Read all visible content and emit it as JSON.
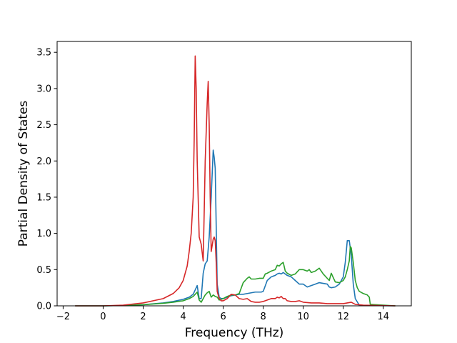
{
  "chart_data": {
    "type": "line",
    "title": "",
    "xlabel": "Frequency (THz)",
    "ylabel": "Partial Density of States",
    "xlim": [
      -2.3,
      15.4
    ],
    "ylim": [
      0,
      3.65
    ],
    "xticks": [
      -2,
      0,
      2,
      4,
      6,
      8,
      10,
      12,
      14
    ],
    "xtick_labels": [
      "−2",
      "0",
      "2",
      "4",
      "6",
      "8",
      "10",
      "12",
      "14"
    ],
    "yticks": [
      0,
      0.5,
      1.0,
      1.5,
      2.0,
      2.5,
      3.0,
      3.5
    ],
    "ytick_labels": [
      "0.0",
      "0.5",
      "1.0",
      "1.5",
      "2.0",
      "2.5",
      "3.0",
      "3.5"
    ],
    "grid": false,
    "legend": false,
    "series": [
      {
        "color": "#1f77b4",
        "x": [
          -1.4,
          0,
          1,
          2,
          3,
          3.5,
          4,
          4.3,
          4.5,
          4.6,
          4.7,
          4.8,
          4.9,
          5.0,
          5.1,
          5.2,
          5.3,
          5.4,
          5.5,
          5.55,
          5.6,
          5.65,
          5.7,
          5.8,
          5.9,
          6.0,
          6.2,
          6.4,
          6.6,
          6.8,
          7.0,
          7.2,
          7.4,
          7.6,
          7.8,
          7.9,
          8.0,
          8.2,
          8.4,
          8.6,
          8.7,
          8.8,
          8.9,
          9.0,
          9.2,
          9.4,
          9.6,
          9.8,
          10.0,
          10.2,
          10.4,
          10.6,
          10.8,
          11.0,
          11.2,
          11.3,
          11.4,
          11.6,
          11.8,
          12.0,
          12.1,
          12.2,
          12.3,
          12.4,
          12.5,
          12.6,
          12.8,
          13.0,
          14.6
        ],
        "y": [
          0,
          0,
          0.005,
          0.015,
          0.04,
          0.06,
          0.09,
          0.12,
          0.16,
          0.22,
          0.28,
          0.1,
          0.1,
          0.45,
          0.58,
          0.62,
          0.95,
          1.5,
          2.15,
          2.05,
          1.9,
          1.1,
          0.3,
          0.12,
          0.1,
          0.1,
          0.12,
          0.14,
          0.15,
          0.16,
          0.16,
          0.17,
          0.18,
          0.19,
          0.19,
          0.19,
          0.2,
          0.35,
          0.4,
          0.42,
          0.44,
          0.45,
          0.44,
          0.46,
          0.42,
          0.4,
          0.35,
          0.3,
          0.3,
          0.26,
          0.28,
          0.3,
          0.32,
          0.31,
          0.3,
          0.26,
          0.25,
          0.26,
          0.3,
          0.4,
          0.6,
          0.9,
          0.9,
          0.7,
          0.3,
          0.1,
          0.01,
          0.005,
          0
        ]
      },
      {
        "color": "#2ca02c",
        "x": [
          -1.4,
          0,
          1,
          2,
          3,
          3.5,
          4,
          4.3,
          4.5,
          4.6,
          4.7,
          4.8,
          4.9,
          5.0,
          5.1,
          5.2,
          5.3,
          5.4,
          5.5,
          5.6,
          5.7,
          5.8,
          5.9,
          6.0,
          6.2,
          6.4,
          6.6,
          6.8,
          7.0,
          7.2,
          7.3,
          7.4,
          7.6,
          7.8,
          8.0,
          8.1,
          8.2,
          8.4,
          8.6,
          8.7,
          8.8,
          8.9,
          9.0,
          9.1,
          9.2,
          9.4,
          9.6,
          9.8,
          10.0,
          10.2,
          10.3,
          10.4,
          10.6,
          10.8,
          11.0,
          11.2,
          11.3,
          11.4,
          11.6,
          11.8,
          12.0,
          12.1,
          12.2,
          12.3,
          12.35,
          12.4,
          12.5,
          12.6,
          12.7,
          12.8,
          13.0,
          13.2,
          13.3,
          13.35,
          14.6
        ],
        "y": [
          0,
          0,
          0.005,
          0.015,
          0.035,
          0.05,
          0.07,
          0.1,
          0.13,
          0.16,
          0.19,
          0.08,
          0.05,
          0.1,
          0.15,
          0.18,
          0.2,
          0.12,
          0.15,
          0.13,
          0.12,
          0.08,
          0.09,
          0.1,
          0.13,
          0.15,
          0.15,
          0.17,
          0.32,
          0.38,
          0.4,
          0.37,
          0.37,
          0.38,
          0.38,
          0.44,
          0.45,
          0.48,
          0.5,
          0.56,
          0.55,
          0.58,
          0.6,
          0.48,
          0.45,
          0.42,
          0.44,
          0.5,
          0.5,
          0.48,
          0.5,
          0.46,
          0.48,
          0.52,
          0.44,
          0.38,
          0.35,
          0.45,
          0.33,
          0.32,
          0.35,
          0.4,
          0.5,
          0.62,
          0.82,
          0.8,
          0.6,
          0.35,
          0.25,
          0.2,
          0.17,
          0.15,
          0.12,
          0.02,
          0
        ]
      },
      {
        "color": "#d62728",
        "x": [
          -1.4,
          0,
          1,
          2,
          3,
          3.5,
          3.8,
          4.0,
          4.2,
          4.3,
          4.4,
          4.5,
          4.55,
          4.6,
          4.65,
          4.7,
          4.8,
          4.9,
          5.0,
          5.05,
          5.1,
          5.2,
          5.25,
          5.3,
          5.35,
          5.4,
          5.5,
          5.55,
          5.6,
          5.65,
          5.7,
          5.8,
          5.9,
          6.0,
          6.2,
          6.4,
          6.6,
          6.8,
          7.0,
          7.2,
          7.4,
          7.6,
          7.8,
          8.0,
          8.2,
          8.4,
          8.6,
          8.7,
          8.8,
          8.9,
          9.0,
          9.1,
          9.2,
          9.4,
          9.6,
          9.8,
          10.0,
          10.4,
          10.8,
          11.2,
          11.6,
          12.0,
          12.2,
          12.4,
          12.6,
          13.0,
          14.6
        ],
        "y": [
          0,
          0,
          0.01,
          0.04,
          0.1,
          0.17,
          0.25,
          0.35,
          0.55,
          0.75,
          1.0,
          1.5,
          2.3,
          3.45,
          3.0,
          2.0,
          0.95,
          0.85,
          0.62,
          1.3,
          2.0,
          2.8,
          3.1,
          2.5,
          1.5,
          0.75,
          0.92,
          0.95,
          0.9,
          0.6,
          0.2,
          0.1,
          0.07,
          0.07,
          0.1,
          0.16,
          0.15,
          0.1,
          0.09,
          0.1,
          0.06,
          0.05,
          0.05,
          0.06,
          0.08,
          0.1,
          0.1,
          0.12,
          0.11,
          0.13,
          0.1,
          0.1,
          0.07,
          0.06,
          0.06,
          0.07,
          0.05,
          0.04,
          0.04,
          0.03,
          0.03,
          0.03,
          0.04,
          0.05,
          0.02,
          0.01,
          0
        ]
      }
    ]
  }
}
